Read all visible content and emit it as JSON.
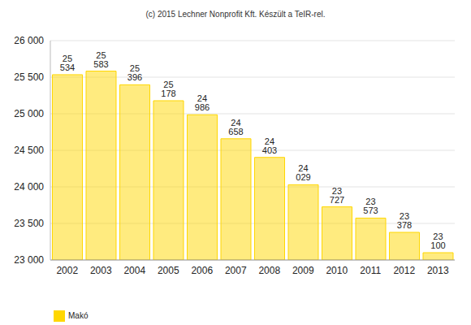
{
  "chart_data": {
    "type": "bar",
    "title": "(c) 2015 Lechner Nonprofit Kft. Készült a TeIR-rel.",
    "categories": [
      "2002",
      "2003",
      "2004",
      "2005",
      "2006",
      "2007",
      "2008",
      "2009",
      "2010",
      "2011",
      "2012",
      "2013"
    ],
    "series": [
      {
        "name": "Makó",
        "color": "#ffd700",
        "values": [
          25534,
          25583,
          25396,
          25178,
          24986,
          24658,
          24403,
          24029,
          23727,
          23573,
          23378,
          23100
        ],
        "value_labels": [
          "25 534",
          "25 583",
          "25 396",
          "25 178",
          "24 986",
          "24 658",
          "24 403",
          "24 029",
          "23 727",
          "23 573",
          "23 378",
          "23 100"
        ]
      }
    ],
    "ylim": [
      23000,
      26000
    ],
    "yticks": [
      {
        "value": 23000,
        "label": "23 000"
      },
      {
        "value": 23500,
        "label": "23 500"
      },
      {
        "value": 24000,
        "label": "24 000"
      },
      {
        "value": 24500,
        "label": "24 500"
      },
      {
        "value": 25000,
        "label": "25 000"
      },
      {
        "value": 25500,
        "label": "25 500"
      },
      {
        "value": 26000,
        "label": "26 000"
      }
    ],
    "grid": true,
    "data_labels": true,
    "legend": "bottom-left"
  }
}
